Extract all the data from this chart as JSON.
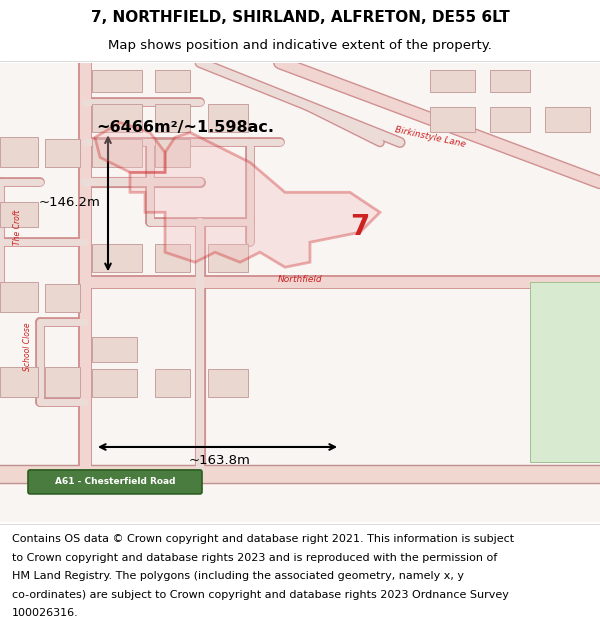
{
  "title_line1": "7, NORTHFIELD, SHIRLAND, ALFRETON, DE55 6LT",
  "title_line2": "Map shows position and indicative extent of the property.",
  "area_label": "~6466m²/~1.598ac.",
  "dim_width": "~163.8m",
  "dim_height": "~146.2m",
  "plot_number": "7",
  "footer_lines": [
    "Contains OS data © Crown copyright and database right 2021. This information is subject",
    "to Crown copyright and database rights 2023 and is reproduced with the permission of",
    "HM Land Registry. The polygons (including the associated geometry, namely x, y",
    "co-ordinates) are subject to Crown copyright and database rights 2023 Ordnance Survey",
    "100026316."
  ],
  "map_bg": "#f9f5f3",
  "highlight_red": "#cc2222",
  "title_fontsize": 11,
  "subtitle_fontsize": 9.5,
  "footer_fontsize": 8.0
}
